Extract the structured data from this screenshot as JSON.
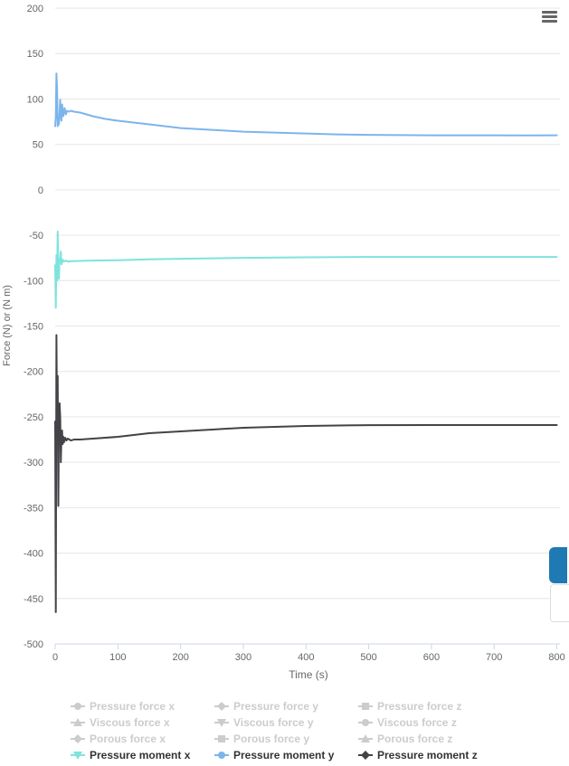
{
  "chart_data": {
    "type": "line",
    "title": "",
    "xlabel": "Time (s)",
    "ylabel": "Force (N) or (N m)",
    "xlim": [
      0,
      805
    ],
    "ylim": [
      -500,
      200
    ],
    "x_ticks": [
      0,
      100,
      200,
      300,
      400,
      500,
      600,
      700,
      800
    ],
    "y_ticks": [
      200,
      150,
      100,
      50,
      0,
      -50,
      -100,
      -150,
      -200,
      -250,
      -300,
      -350,
      -400,
      -450,
      -500
    ],
    "grid": true,
    "series": [
      {
        "name": "Pressure moment y",
        "color": "#7cb5ec",
        "visible": true,
        "points": [
          [
            0,
            70
          ],
          [
            1,
            80
          ],
          [
            2,
            128
          ],
          [
            3,
            112
          ],
          [
            4,
            70
          ],
          [
            5,
            76
          ],
          [
            6,
            72
          ],
          [
            7,
            85
          ],
          [
            8,
            99
          ],
          [
            9,
            82
          ],
          [
            10,
            76
          ],
          [
            11,
            94
          ],
          [
            13,
            81
          ],
          [
            15,
            90
          ],
          [
            17,
            83
          ],
          [
            19,
            87
          ],
          [
            22,
            86
          ],
          [
            25,
            87
          ],
          [
            30,
            86
          ],
          [
            40,
            85
          ],
          [
            50,
            83
          ],
          [
            60,
            81
          ],
          [
            80,
            78
          ],
          [
            100,
            76
          ],
          [
            150,
            72
          ],
          [
            200,
            68
          ],
          [
            250,
            66
          ],
          [
            300,
            64
          ],
          [
            350,
            63
          ],
          [
            400,
            62
          ],
          [
            450,
            61
          ],
          [
            500,
            60.5
          ],
          [
            550,
            60.2
          ],
          [
            600,
            60
          ],
          [
            650,
            60
          ],
          [
            700,
            60
          ],
          [
            750,
            59.8
          ],
          [
            800,
            60
          ]
        ]
      },
      {
        "name": "Pressure moment x",
        "color": "#7fe3dd",
        "visible": true,
        "points": [
          [
            0,
            -83
          ],
          [
            1,
            -130
          ],
          [
            2,
            -72
          ],
          [
            3,
            -100
          ],
          [
            4,
            -46
          ],
          [
            5,
            -79
          ],
          [
            6,
            -98
          ],
          [
            7,
            -76
          ],
          [
            8,
            -78
          ],
          [
            9,
            -68
          ],
          [
            10,
            -82
          ],
          [
            11,
            -80
          ],
          [
            12,
            -77
          ],
          [
            14,
            -79
          ],
          [
            17,
            -78
          ],
          [
            20,
            -79
          ],
          [
            30,
            -78.5
          ],
          [
            50,
            -78
          ],
          [
            100,
            -77.5
          ],
          [
            150,
            -76.5
          ],
          [
            200,
            -76
          ],
          [
            300,
            -75
          ],
          [
            400,
            -74.3
          ],
          [
            500,
            -74
          ],
          [
            600,
            -74
          ],
          [
            700,
            -74
          ],
          [
            800,
            -74
          ]
        ]
      },
      {
        "name": "Pressure moment z",
        "color": "#434348",
        "visible": true,
        "points": [
          [
            0,
            -255
          ],
          [
            1,
            -465
          ],
          [
            2,
            -160
          ],
          [
            3,
            -258
          ],
          [
            4,
            -205
          ],
          [
            5,
            -348
          ],
          [
            6,
            -250
          ],
          [
            7,
            -235
          ],
          [
            8,
            -250
          ],
          [
            9,
            -300
          ],
          [
            10,
            -272
          ],
          [
            11,
            -265
          ],
          [
            12,
            -280
          ],
          [
            13,
            -272
          ],
          [
            14,
            -278
          ],
          [
            16,
            -273
          ],
          [
            18,
            -276
          ],
          [
            20,
            -274
          ],
          [
            25,
            -276
          ],
          [
            30,
            -275
          ],
          [
            40,
            -275
          ],
          [
            60,
            -274
          ],
          [
            100,
            -272
          ],
          [
            150,
            -268
          ],
          [
            200,
            -266
          ],
          [
            250,
            -264
          ],
          [
            300,
            -262
          ],
          [
            350,
            -261
          ],
          [
            400,
            -260
          ],
          [
            450,
            -259.5
          ],
          [
            500,
            -259.2
          ],
          [
            600,
            -259
          ],
          [
            700,
            -259
          ],
          [
            800,
            -259
          ]
        ]
      }
    ],
    "legend": {
      "placement": "bottom",
      "items": [
        {
          "name": "Pressure force x",
          "symbol": "circle",
          "color": "#cccccc",
          "active": false
        },
        {
          "name": "Pressure force y",
          "symbol": "diamond",
          "color": "#cccccc",
          "active": false
        },
        {
          "name": "Pressure force z",
          "symbol": "square",
          "color": "#cccccc",
          "active": false
        },
        {
          "name": "Viscous force x",
          "symbol": "triangle",
          "color": "#cccccc",
          "active": false
        },
        {
          "name": "Viscous force y",
          "symbol": "triangle-down",
          "color": "#cccccc",
          "active": false
        },
        {
          "name": "Viscous force z",
          "symbol": "circle",
          "color": "#cccccc",
          "active": false
        },
        {
          "name": "Porous force x",
          "symbol": "diamond",
          "color": "#cccccc",
          "active": false
        },
        {
          "name": "Porous force y",
          "symbol": "square",
          "color": "#cccccc",
          "active": false
        },
        {
          "name": "Porous force z",
          "symbol": "triangle",
          "color": "#cccccc",
          "active": false
        },
        {
          "name": "Pressure moment x",
          "symbol": "triangle-down",
          "color": "#7fe3dd",
          "active": true
        },
        {
          "name": "Pressure moment y",
          "symbol": "circle",
          "color": "#7cb5ec",
          "active": true
        },
        {
          "name": "Pressure moment z",
          "symbol": "diamond",
          "color": "#434348",
          "active": true
        }
      ]
    }
  },
  "toolbar": {
    "menu_icon": "hamburger-menu-icon"
  }
}
